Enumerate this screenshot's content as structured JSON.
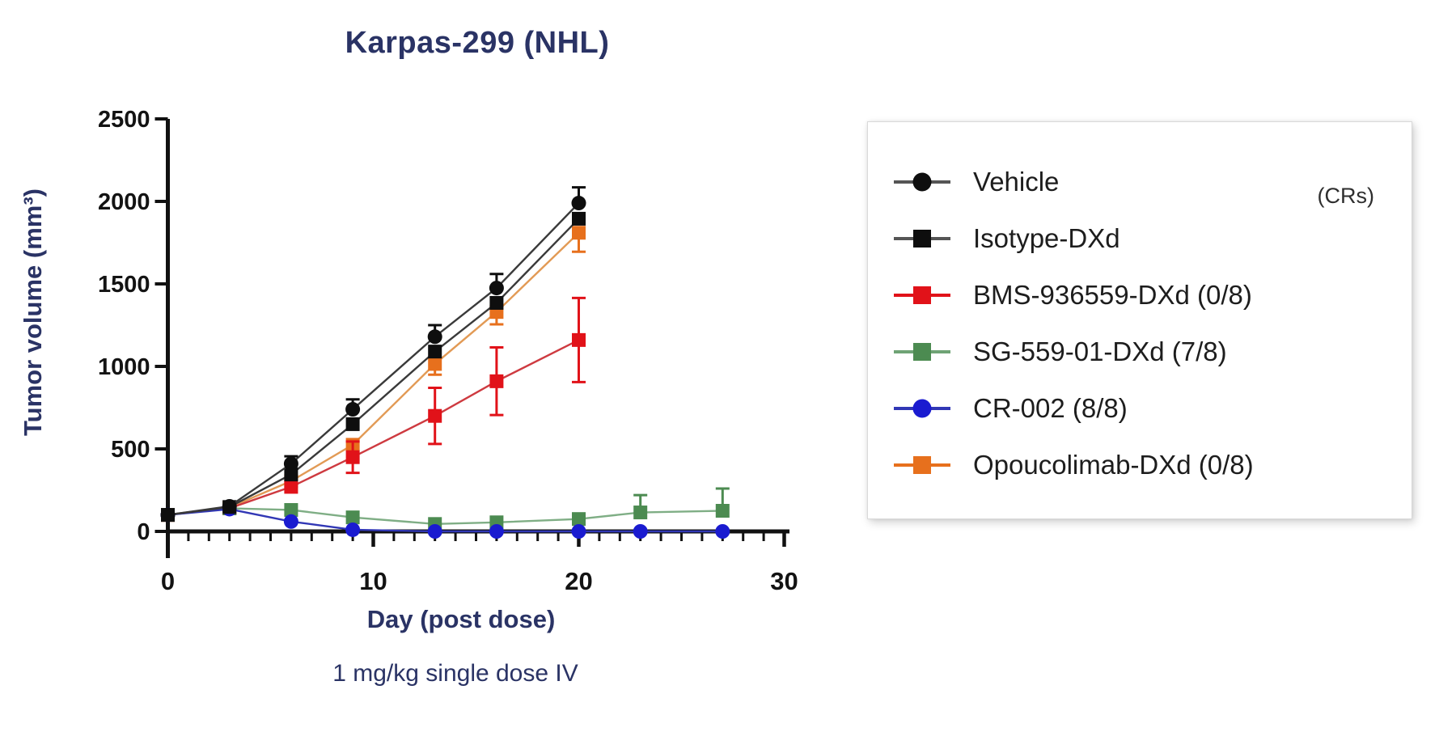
{
  "figure": {
    "background": "#ffffff",
    "text_color_navy": "#2a3365",
    "axis_color": "#111111"
  },
  "chart_data": {
    "type": "line",
    "title": "Karpas-299 (NHL)",
    "ylabel": "Tumor volume (mm³)",
    "xlabel": "Day (post dose)",
    "caption": "1 mg/kg single dose IV",
    "xlim": [
      0,
      30
    ],
    "ylim": [
      0,
      2500
    ],
    "yticks": [
      0,
      500,
      1000,
      1500,
      2000,
      2500
    ],
    "xticks_major": [
      0,
      10,
      20,
      30
    ],
    "xtick_minor_step": 1,
    "grid": false,
    "legend_position": "right",
    "series": [
      {
        "name": "Opoucolimab-DXd",
        "marker": "square",
        "color": "#e7701d",
        "line_color": "#e29a55",
        "x": [
          0,
          3,
          6,
          9,
          13,
          16,
          20
        ],
        "y": [
          100,
          145,
          305,
          525,
          1015,
          1330,
          1810
        ],
        "err": [
          0,
          0,
          0,
          0,
          65,
          75,
          115
        ],
        "err_dir": "down"
      },
      {
        "name": "BMS-936559-DXd",
        "marker": "square",
        "color": "#e11219",
        "line_color": "#ce3a40",
        "x": [
          0,
          3,
          6,
          9,
          13,
          16,
          20
        ],
        "y": [
          100,
          140,
          270,
          450,
          700,
          910,
          1160
        ],
        "err": [
          0,
          0,
          0,
          95,
          170,
          205,
          255
        ],
        "err_dir": "both"
      },
      {
        "name": "SG-559-01-DXd",
        "marker": "square",
        "color": "#4c8b51",
        "line_color": "#7fae85",
        "x": [
          0,
          3,
          6,
          9,
          13,
          16,
          20,
          23,
          27
        ],
        "y": [
          100,
          140,
          130,
          85,
          45,
          55,
          75,
          115,
          125
        ],
        "err": [
          0,
          0,
          0,
          0,
          0,
          0,
          0,
          105,
          135
        ],
        "err_dir": "up"
      },
      {
        "name": "CR-002",
        "marker": "circle",
        "color": "#1a1bd0",
        "line_color": "#3137b5",
        "x": [
          0,
          3,
          6,
          9,
          13,
          16,
          20,
          23,
          27
        ],
        "y": [
          100,
          135,
          60,
          10,
          0,
          0,
          0,
          0,
          0
        ],
        "err": [
          0,
          0,
          0,
          0,
          0,
          0,
          0,
          0,
          0
        ],
        "err_dir": "up"
      },
      {
        "name": "Isotype-DXd",
        "marker": "square",
        "color": "#0e0e0e",
        "line_color": "#3a3a3a",
        "x": [
          0,
          3,
          6,
          9,
          13,
          16,
          20
        ],
        "y": [
          100,
          148,
          345,
          650,
          1090,
          1385,
          1895
        ],
        "err": [
          0,
          0,
          0,
          0,
          0,
          0,
          0
        ],
        "err_dir": "up"
      },
      {
        "name": "Vehicle",
        "marker": "circle",
        "color": "#0e0e0e",
        "line_color": "#3a3a3a",
        "x": [
          0,
          3,
          6,
          9,
          13,
          16,
          20
        ],
        "y": [
          100,
          152,
          410,
          740,
          1180,
          1475,
          1990
        ],
        "err": [
          0,
          0,
          45,
          60,
          70,
          85,
          95
        ],
        "err_dir": "up"
      }
    ]
  },
  "legend": {
    "note": "(CRs)",
    "items": [
      {
        "label": "Vehicle",
        "marker": "circle",
        "color": "#0e0e0e",
        "line_color": "#555555"
      },
      {
        "label": "Isotype-DXd",
        "marker": "square",
        "color": "#0e0e0e",
        "line_color": "#555555"
      },
      {
        "label": "BMS-936559-DXd (0/8)",
        "marker": "square",
        "color": "#e11219",
        "line_color": "#e11219"
      },
      {
        "label": "SG-559-01-DXd (7/8)",
        "marker": "square",
        "color": "#4c8b51",
        "line_color": "#6fa375"
      },
      {
        "label": "CR-002 (8/8)",
        "marker": "circle",
        "color": "#1a1bd0",
        "line_color": "#3137b5"
      },
      {
        "label": "Opoucolimab-DXd (0/8)",
        "marker": "square",
        "color": "#e7701d",
        "line_color": "#e7701d"
      }
    ]
  }
}
